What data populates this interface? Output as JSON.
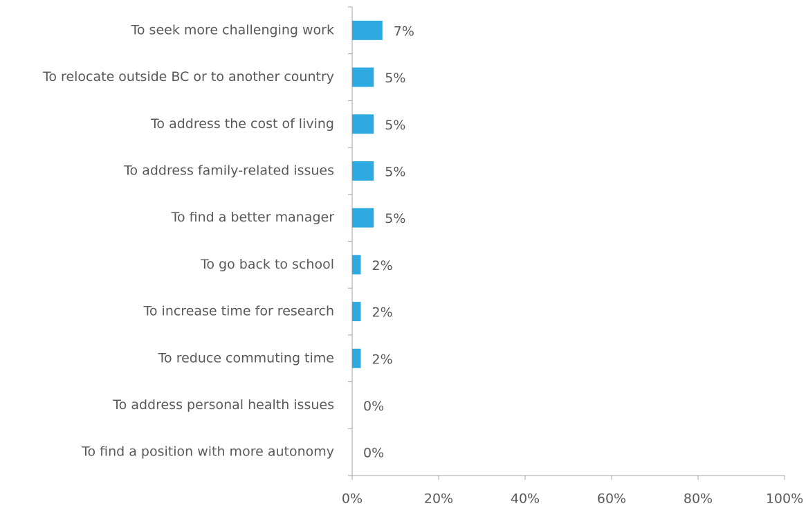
{
  "chart_data": {
    "type": "bar",
    "orientation": "horizontal",
    "categories": [
      "To seek more challenging work",
      "To relocate outside BC or to another country",
      "To address the cost of living",
      "To address family-related issues",
      "To find a better manager",
      "To go back to school",
      "To increase time for research",
      "To reduce commuting time",
      "To address personal health issues",
      "To find a position with more autonomy"
    ],
    "values": [
      7,
      5,
      5,
      5,
      5,
      2,
      2,
      2,
      0,
      0
    ],
    "value_labels": [
      "7%",
      "5%",
      "5%",
      "5%",
      "5%",
      "2%",
      "2%",
      "2%",
      "0%",
      "0%"
    ],
    "color": "#2eaae1",
    "xlim": [
      0,
      100
    ],
    "xticks": [
      {
        "value": 0,
        "label": "0%"
      },
      {
        "value": 20,
        "label": "20%"
      },
      {
        "value": 40,
        "label": "40%"
      },
      {
        "value": 60,
        "label": "60%"
      },
      {
        "value": 80,
        "label": "80%"
      },
      {
        "value": 100,
        "label": "100%"
      }
    ],
    "grid": false
  }
}
